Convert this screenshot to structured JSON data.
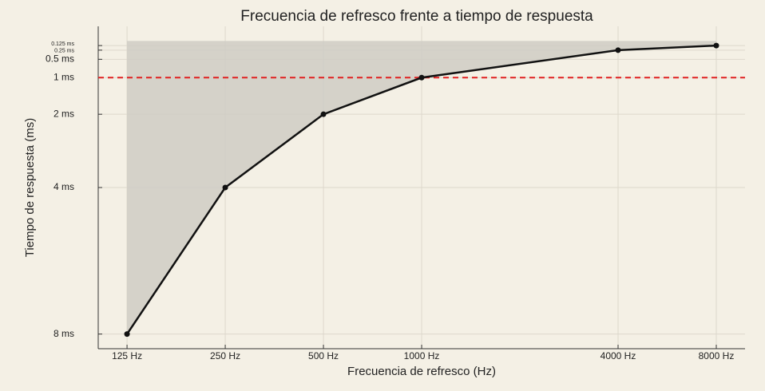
{
  "chart_data": {
    "type": "line",
    "title": "Frecuencia de refresco frente a tiempo de respuesta",
    "x_label": "Frecuencia de refresco (Hz)",
    "y_label": "Tiempo de respuesta (ms)",
    "x": [
      125,
      250,
      500,
      1000,
      4000,
      8000
    ],
    "values": [
      8,
      4,
      2,
      1,
      0.25,
      0.125
    ],
    "color": "#111111",
    "fill_color": "#cfccc4",
    "xlog": true,
    "xlim": [
      102,
      9800
    ],
    "ylim": [
      8.4,
      -0.4
    ],
    "xticks": [
      {
        "value": 125,
        "label": "125 Hz"
      },
      {
        "value": 250,
        "label": "250 Hz"
      },
      {
        "value": 500,
        "label": "500 Hz"
      },
      {
        "value": 1000,
        "label": "1000 Hz"
      },
      {
        "value": 4000,
        "label": "4000 Hz"
      },
      {
        "value": 8000,
        "label": "8000 Hz"
      }
    ],
    "yticks": [
      {
        "value": 0.125,
        "label": "0.125 ms"
      },
      {
        "value": 0.25,
        "label": "0.25 ms"
      },
      {
        "value": 0.5,
        "label": "0.5 ms"
      },
      {
        "value": 1,
        "label": "1 ms"
      },
      {
        "value": 2,
        "label": "2 ms"
      },
      {
        "value": 4,
        "label": "4 ms"
      },
      {
        "value": 8,
        "label": "8 ms"
      }
    ],
    "hline": {
      "value": 1,
      "color": "#e02020"
    },
    "grid": true
  }
}
